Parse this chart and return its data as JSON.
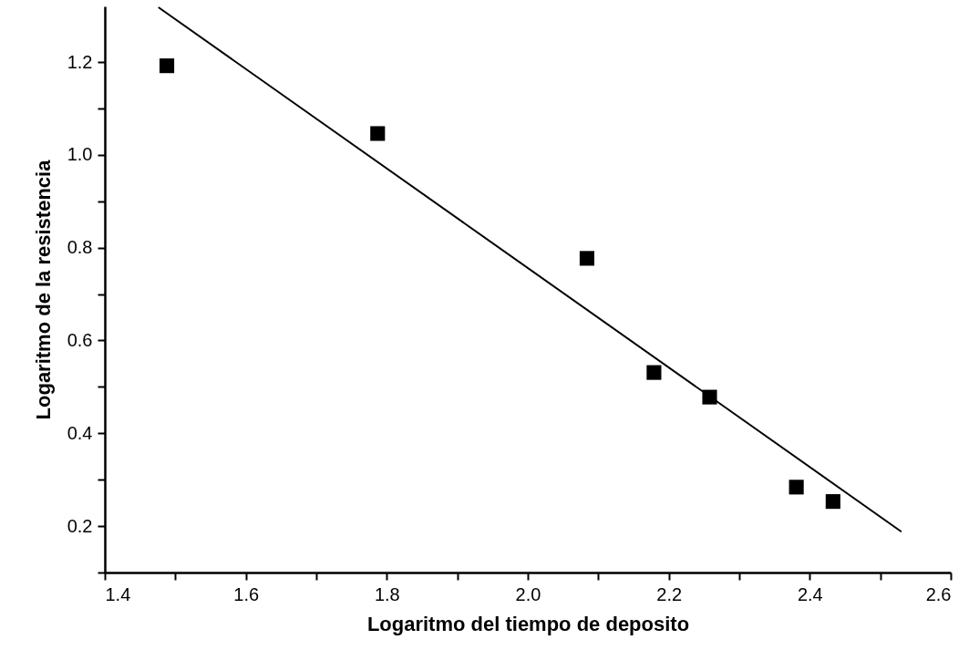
{
  "chart_data": {
    "type": "scatter",
    "xlabel": "Logaritmo del tiempo de deposito",
    "ylabel": "Logaritmo de la resistencia",
    "xlim": [
      1.4,
      2.6
    ],
    "ylim": [
      0.1,
      1.32
    ],
    "xticks": [
      1.4,
      {
        "value": 1.5,
        "label": null
      },
      1.6,
      {
        "value": 1.7,
        "label": null
      },
      1.8,
      {
        "value": 1.9,
        "label": null
      },
      {
        "value": 2,
        "label": "2.0"
      },
      {
        "value": 2.1,
        "label": null
      },
      2.2,
      {
        "value": 2.3,
        "label": null
      },
      2.4,
      {
        "value": 2.5,
        "label": null
      },
      2.6
    ],
    "yticks": [
      {
        "value": 0.1,
        "label": null
      },
      0.2,
      {
        "value": 0.3,
        "label": null
      },
      0.4,
      {
        "value": 0.5,
        "label": null
      },
      0.6,
      {
        "value": 0.7,
        "label": null
      },
      0.8,
      {
        "value": 0.9,
        "label": null
      },
      {
        "value": 1,
        "label": "1.0"
      },
      {
        "value": 1.1,
        "label": null
      },
      1.2
    ],
    "grid": false,
    "series": [
      {
        "marker": "square",
        "color": "#000000",
        "x": [
          1.488,
          1.787,
          2.084,
          2.179,
          2.258,
          2.381,
          2.433
        ],
        "values": [
          1.192,
          1.046,
          0.777,
          0.531,
          0.478,
          0.284,
          0.253
        ]
      },
      {
        "type": "line",
        "marker": "none",
        "color": "#000000",
        "x": [
          1.476,
          2.53
        ],
        "values": [
          1.318,
          0.188
        ]
      }
    ]
  }
}
